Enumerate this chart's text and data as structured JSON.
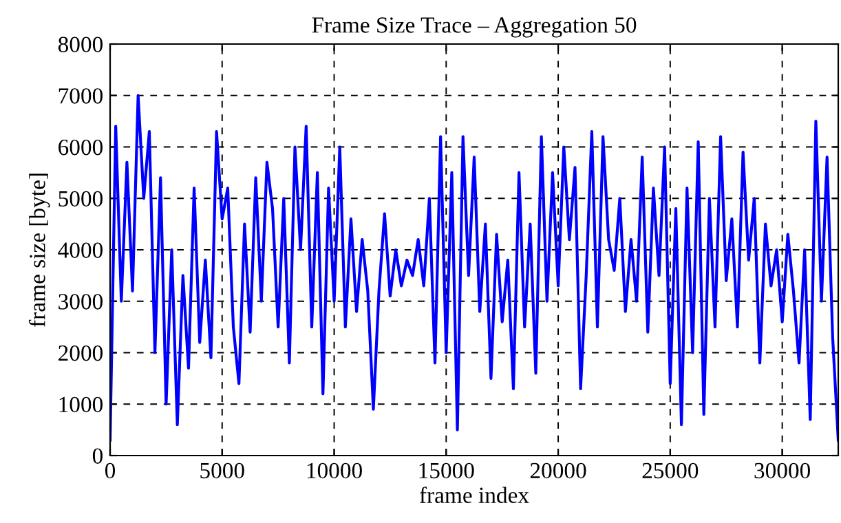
{
  "chart_data": {
    "type": "line",
    "title": "Frame Size Trace – Aggregation 50",
    "xlabel": "frame index",
    "ylabel": "frame size [byte]",
    "xlim": [
      0,
      32500
    ],
    "ylim": [
      0,
      8000
    ],
    "xticks": [
      0,
      5000,
      10000,
      15000,
      20000,
      25000,
      30000
    ],
    "yticks": [
      0,
      1000,
      2000,
      3000,
      4000,
      5000,
      6000,
      7000,
      8000
    ],
    "grid": true,
    "line_style": "solid",
    "series": [
      {
        "color": "#0000ff",
        "x": [
          0,
          250,
          500,
          750,
          1000,
          1250,
          1500,
          1750,
          2000,
          2250,
          2500,
          2750,
          3000,
          3250,
          3500,
          3750,
          4000,
          4250,
          4500,
          4750,
          5000,
          5250,
          5500,
          5750,
          6000,
          6250,
          6500,
          6750,
          7000,
          7250,
          7500,
          7750,
          8000,
          8250,
          8500,
          8750,
          9000,
          9250,
          9500,
          9750,
          10000,
          10250,
          10500,
          10750,
          11000,
          11250,
          11500,
          11750,
          12000,
          12250,
          12500,
          12750,
          13000,
          13250,
          13500,
          13750,
          14000,
          14250,
          14500,
          14750,
          15000,
          15250,
          15500,
          15750,
          16000,
          16250,
          16500,
          16750,
          17000,
          17250,
          17500,
          17750,
          18000,
          18250,
          18500,
          18750,
          19000,
          19250,
          19500,
          19750,
          20000,
          20250,
          20500,
          20750,
          21000,
          21250,
          21500,
          21750,
          22000,
          22250,
          22500,
          22750,
          23000,
          23250,
          23500,
          23750,
          24000,
          24250,
          24500,
          24750,
          25000,
          25250,
          25500,
          25750,
          26000,
          26250,
          26500,
          26750,
          27000,
          27250,
          27500,
          27750,
          28000,
          28250,
          28500,
          28750,
          29000,
          29250,
          29500,
          29750,
          30000,
          30250,
          30500,
          30750,
          31000,
          31250,
          31500,
          31750,
          32000,
          32250,
          32500
        ],
        "values": [
          300,
          6400,
          3000,
          5700,
          3200,
          7000,
          5000,
          6300,
          2000,
          5400,
          1000,
          4000,
          600,
          3500,
          1700,
          5200,
          2200,
          3800,
          1900,
          6300,
          4600,
          5200,
          2500,
          1400,
          4500,
          2400,
          5400,
          3000,
          5700,
          4800,
          2500,
          5000,
          1800,
          6000,
          4000,
          6400,
          2500,
          5500,
          1200,
          5200,
          3000,
          6000,
          2500,
          4600,
          2800,
          4200,
          3200,
          900,
          3200,
          4700,
          3100,
          4000,
          3300,
          3800,
          3500,
          4200,
          3300,
          5000,
          1800,
          6200,
          2000,
          5500,
          500,
          6200,
          3500,
          5800,
          2800,
          4500,
          1500,
          4300,
          2600,
          3800,
          1300,
          5500,
          2500,
          4500,
          1600,
          6200,
          3000,
          5500,
          3300,
          6000,
          4200,
          5600,
          1300,
          3500,
          6300,
          2500,
          6200,
          4200,
          3600,
          5000,
          2800,
          4200,
          3000,
          5800,
          2400,
          5200,
          3500,
          6000,
          1400,
          4800,
          600,
          5200,
          2000,
          6100,
          800,
          5000,
          2500,
          6200,
          3400,
          4600,
          2500,
          5900,
          3800,
          5000,
          1800,
          4500,
          3300,
          4000,
          2600,
          4300,
          3200,
          1800,
          4000,
          700,
          6500,
          3000,
          5800,
          2300,
          300
        ]
      }
    ]
  }
}
